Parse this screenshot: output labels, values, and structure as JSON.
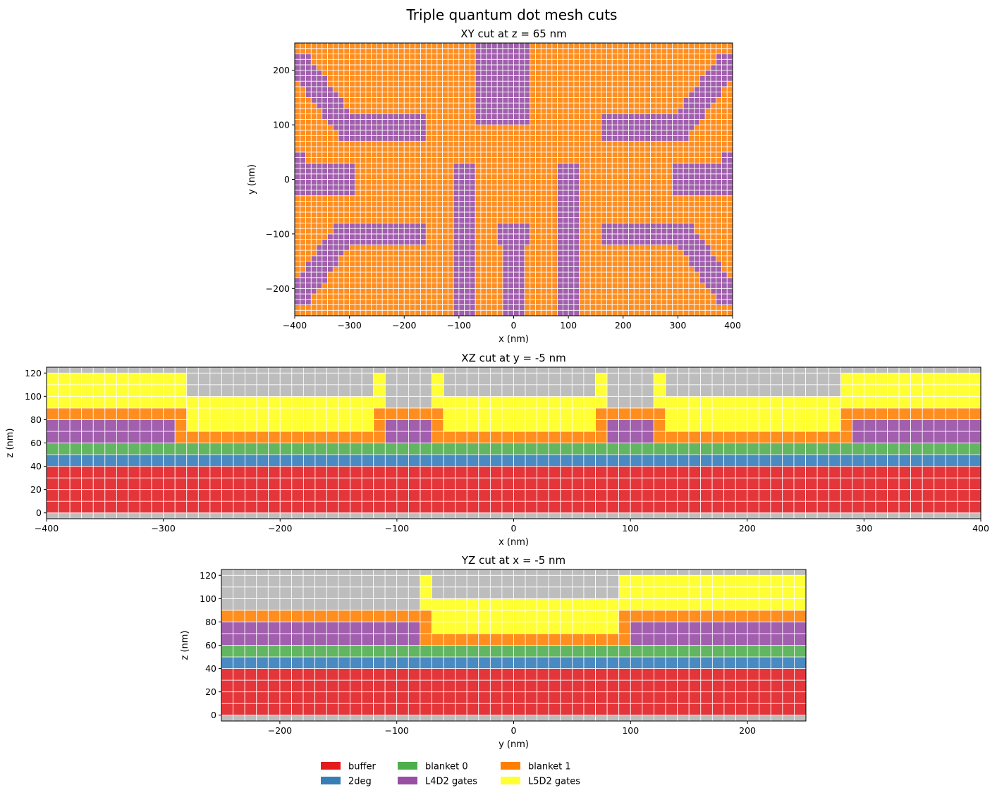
{
  "figure_title": "Triple quantum dot mesh cuts",
  "colors": {
    "buffer": "#e4363a",
    "2deg": "#4a8ac2",
    "blanket 0": "#62b662",
    "blanket 1": "#ff8e1f",
    "L4D2 gates": "#a15fad",
    "L5D2 gates": "#ffff33",
    "empty": "#bdbdbd",
    "mesh_line": "#ffffff"
  },
  "legend": [
    {
      "label": "buffer",
      "color": "#e41a1c"
    },
    {
      "label": "2deg",
      "color": "#377eb8"
    },
    {
      "label": "blanket 0",
      "color": "#4daf4a"
    },
    {
      "label": "L4D2 gates",
      "color": "#984ea3"
    },
    {
      "label": "blanket 1",
      "color": "#ff7f00"
    },
    {
      "label": "L5D2 gates",
      "color": "#ffff33"
    }
  ],
  "chart_data": [
    {
      "type": "heatmap",
      "title": "XY cut at z = 65 nm",
      "xlabel": "x (nm)",
      "ylabel": "y (nm)",
      "xlim": [
        -400,
        400
      ],
      "ylim": [
        -250,
        250
      ],
      "xticks": [
        -400,
        -300,
        -200,
        -100,
        0,
        100,
        200,
        300,
        400
      ],
      "yticks": [
        -200,
        -100,
        0,
        100,
        200
      ],
      "mesh_step": [
        10,
        10
      ],
      "background_material": "blanket 1",
      "regions": [
        {
          "material": "L4D2 gates",
          "shape": "rect",
          "x": [
            -70,
            30
          ],
          "y": [
            100,
            250
          ]
        },
        {
          "material": "L4D2 gates",
          "shape": "rect",
          "x": [
            -110,
            -70
          ],
          "y": [
            -250,
            30
          ]
        },
        {
          "material": "L4D2 gates",
          "shape": "rect",
          "x": [
            80,
            120
          ],
          "y": [
            -250,
            30
          ]
        },
        {
          "material": "L4D2 gates",
          "shape": "rect",
          "x": [
            -30,
            30
          ],
          "y": [
            -120,
            -80
          ]
        },
        {
          "material": "L4D2 gates",
          "shape": "rect",
          "x": [
            -20,
            20
          ],
          "y": [
            -250,
            -120
          ]
        },
        {
          "material": "L4D2 gates",
          "shape": "rect",
          "x": [
            -400,
            -290
          ],
          "y": [
            -30,
            30
          ]
        },
        {
          "material": "L4D2 gates",
          "shape": "rect",
          "x": [
            290,
            400
          ],
          "y": [
            -30,
            30
          ]
        },
        {
          "material": "L4D2 gates",
          "shape": "rect",
          "x": [
            -400,
            -380
          ],
          "y": [
            30,
            50
          ]
        },
        {
          "material": "L4D2 gates",
          "shape": "rect",
          "x": [
            380,
            400
          ],
          "y": [
            30,
            50
          ]
        },
        {
          "material": "L4D2 gates",
          "shape": "rect",
          "x": [
            -320,
            -160
          ],
          "y": [
            70,
            120
          ]
        },
        {
          "material": "L4D2 gates",
          "shape": "rect",
          "x": [
            160,
            320
          ],
          "y": [
            70,
            120
          ]
        },
        {
          "material": "L4D2 gates",
          "shape": "rect",
          "x": [
            -330,
            -160
          ],
          "y": [
            -120,
            -80
          ]
        },
        {
          "material": "L4D2 gates",
          "shape": "rect",
          "x": [
            160,
            330
          ],
          "y": [
            -120,
            -80
          ]
        },
        {
          "material": "L4D2 gates",
          "shape": "band",
          "from": [
            -390,
            210
          ],
          "to": [
            -300,
            90
          ],
          "halfwidth": 22
        },
        {
          "material": "L4D2 gates",
          "shape": "band",
          "from": [
            390,
            210
          ],
          "to": [
            300,
            90
          ],
          "halfwidth": 22
        },
        {
          "material": "L4D2 gates",
          "shape": "band",
          "from": [
            -390,
            -210
          ],
          "to": [
            -310,
            -100
          ],
          "halfwidth": 22
        },
        {
          "material": "L4D2 gates",
          "shape": "band",
          "from": [
            390,
            -210
          ],
          "to": [
            310,
            -100
          ],
          "halfwidth": 22
        }
      ]
    },
    {
      "type": "heatmap",
      "title": "XZ cut at y = -5 nm",
      "xlabel": "x (nm)",
      "ylabel": "z (nm)",
      "xlim": [
        -400,
        400
      ],
      "ylim": [
        -5,
        125
      ],
      "xticks": [
        -400,
        -300,
        -200,
        -100,
        0,
        100,
        200,
        300,
        400
      ],
      "yticks": [
        0,
        20,
        40,
        60,
        80,
        100,
        120
      ],
      "mesh_step": [
        10,
        10
      ],
      "background_material": "empty",
      "layers": [
        {
          "material": "buffer",
          "z": [
            0,
            40
          ]
        },
        {
          "material": "2deg",
          "z": [
            40,
            50
          ]
        },
        {
          "material": "blanket 0",
          "z": [
            50,
            60
          ]
        }
      ],
      "columns": [
        {
          "x": [
            -400,
            -290
          ],
          "stack": [
            {
              "m": "L4D2 gates",
              "z": [
                60,
                80
              ]
            },
            {
              "m": "blanket 1",
              "z": [
                80,
                90
              ]
            },
            {
              "m": "L5D2 gates",
              "z": [
                90,
                120
              ]
            }
          ]
        },
        {
          "x": [
            -290,
            -280
          ],
          "stack": [
            {
              "m": "blanket 1",
              "z": [
                60,
                90
              ]
            },
            {
              "m": "L5D2 gates",
              "z": [
                90,
                120
              ]
            }
          ]
        },
        {
          "x": [
            -280,
            -120
          ],
          "stack": [
            {
              "m": "blanket 1",
              "z": [
                60,
                70
              ]
            },
            {
              "m": "L5D2 gates",
              "z": [
                70,
                100
              ]
            }
          ]
        },
        {
          "x": [
            -120,
            -110
          ],
          "stack": [
            {
              "m": "blanket 1",
              "z": [
                60,
                90
              ]
            },
            {
              "m": "L5D2 gates",
              "z": [
                90,
                120
              ]
            }
          ]
        },
        {
          "x": [
            -110,
            -70
          ],
          "stack": [
            {
              "m": "L4D2 gates",
              "z": [
                60,
                80
              ]
            },
            {
              "m": "blanket 1",
              "z": [
                80,
                90
              ]
            }
          ]
        },
        {
          "x": [
            -70,
            -60
          ],
          "stack": [
            {
              "m": "blanket 1",
              "z": [
                60,
                90
              ]
            },
            {
              "m": "L5D2 gates",
              "z": [
                90,
                120
              ]
            }
          ]
        },
        {
          "x": [
            -60,
            70
          ],
          "stack": [
            {
              "m": "blanket 1",
              "z": [
                60,
                70
              ]
            },
            {
              "m": "L5D2 gates",
              "z": [
                70,
                100
              ]
            }
          ]
        },
        {
          "x": [
            70,
            80
          ],
          "stack": [
            {
              "m": "blanket 1",
              "z": [
                60,
                90
              ]
            },
            {
              "m": "L5D2 gates",
              "z": [
                90,
                120
              ]
            }
          ]
        },
        {
          "x": [
            80,
            120
          ],
          "stack": [
            {
              "m": "L4D2 gates",
              "z": [
                60,
                80
              ]
            },
            {
              "m": "blanket 1",
              "z": [
                80,
                90
              ]
            }
          ]
        },
        {
          "x": [
            120,
            130
          ],
          "stack": [
            {
              "m": "blanket 1",
              "z": [
                60,
                90
              ]
            },
            {
              "m": "L5D2 gates",
              "z": [
                90,
                120
              ]
            }
          ]
        },
        {
          "x": [
            130,
            280
          ],
          "stack": [
            {
              "m": "blanket 1",
              "z": [
                60,
                70
              ]
            },
            {
              "m": "L5D2 gates",
              "z": [
                70,
                100
              ]
            }
          ]
        },
        {
          "x": [
            280,
            290
          ],
          "stack": [
            {
              "m": "blanket 1",
              "z": [
                60,
                90
              ]
            },
            {
              "m": "L5D2 gates",
              "z": [
                90,
                120
              ]
            }
          ]
        },
        {
          "x": [
            290,
            400
          ],
          "stack": [
            {
              "m": "L4D2 gates",
              "z": [
                60,
                80
              ]
            },
            {
              "m": "blanket 1",
              "z": [
                80,
                90
              ]
            },
            {
              "m": "L5D2 gates",
              "z": [
                90,
                120
              ]
            }
          ]
        }
      ]
    },
    {
      "type": "heatmap",
      "title": "YZ cut at x = -5 nm",
      "xlabel": "y (nm)",
      "ylabel": "z (nm)",
      "xlim": [
        -250,
        250
      ],
      "ylim": [
        -5,
        125
      ],
      "xticks": [
        -200,
        -100,
        0,
        100,
        200
      ],
      "yticks": [
        0,
        20,
        40,
        60,
        80,
        100,
        120
      ],
      "mesh_step": [
        10,
        10
      ],
      "background_material": "empty",
      "layers": [
        {
          "material": "buffer",
          "z": [
            0,
            40
          ]
        },
        {
          "material": "2deg",
          "z": [
            40,
            50
          ]
        },
        {
          "material": "blanket 0",
          "z": [
            50,
            60
          ]
        }
      ],
      "columns": [
        {
          "x": [
            -250,
            -80
          ],
          "stack": [
            {
              "m": "L4D2 gates",
              "z": [
                60,
                80
              ]
            },
            {
              "m": "blanket 1",
              "z": [
                80,
                90
              ]
            }
          ]
        },
        {
          "x": [
            -80,
            -70
          ],
          "stack": [
            {
              "m": "blanket 1",
              "z": [
                60,
                90
              ]
            },
            {
              "m": "L5D2 gates",
              "z": [
                90,
                120
              ]
            }
          ]
        },
        {
          "x": [
            -70,
            90
          ],
          "stack": [
            {
              "m": "blanket 1",
              "z": [
                60,
                70
              ]
            },
            {
              "m": "L5D2 gates",
              "z": [
                70,
                100
              ]
            }
          ]
        },
        {
          "x": [
            90,
            100
          ],
          "stack": [
            {
              "m": "blanket 1",
              "z": [
                60,
                90
              ]
            },
            {
              "m": "L5D2 gates",
              "z": [
                90,
                120
              ]
            }
          ]
        },
        {
          "x": [
            100,
            250
          ],
          "stack": [
            {
              "m": "L4D2 gates",
              "z": [
                60,
                80
              ]
            },
            {
              "m": "blanket 1",
              "z": [
                80,
                90
              ]
            },
            {
              "m": "L5D2 gates",
              "z": [
                90,
                120
              ]
            }
          ]
        }
      ]
    }
  ]
}
